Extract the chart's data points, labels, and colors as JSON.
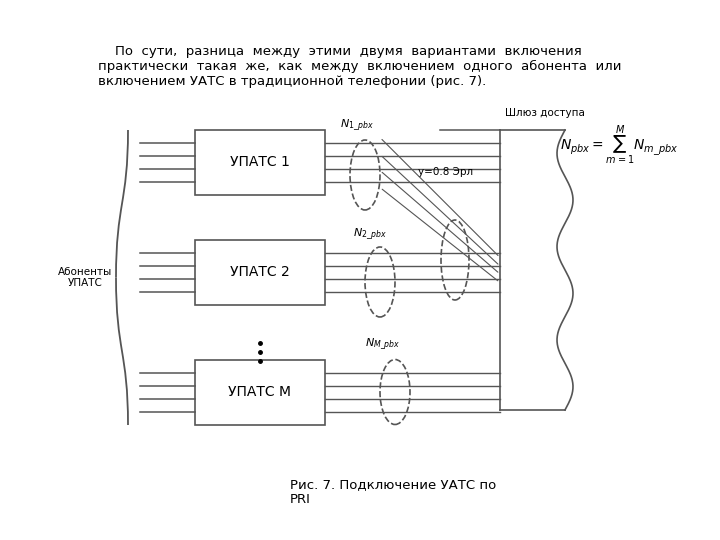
{
  "title_text": "По  сути,  разница  между  этими  двумя  вариантами  включения\nпрактически  такая  же,  как  между  включением  одного  абонента  или\nвключением УАТС в традиционной телефонии (рис. 7).",
  "caption": "Рис. 7. Подключение УАТС по\nPRI",
  "box1_label": "УПАТС 1",
  "box2_label": "УПАТС 2",
  "box3_label": "УПАТС М",
  "label_abonenty": "Абоненты\nУПАТС",
  "label_shlyuz": "Шлюз доступа",
  "label_y08": "y=0.8 Эрл",
  "label_n1": "N",
  "label_n1_sub": "1_pbx",
  "label_n2": "N",
  "label_n2_sub": "2_pbx",
  "label_nm": "N",
  "label_nm_sub": "M_pbx",
  "formula_N": "N",
  "formula_pbx": "pbx",
  "formula_sum": "= ∑",
  "formula_m1M": "M\nm=1",
  "formula_Nm": "N",
  "formula_mpbx": "m_ pbx",
  "background": "#ffffff",
  "line_color": "#555555",
  "dashed_color": "#555555",
  "text_color": "#000000",
  "box_bg": "#ffffff",
  "box_border": "#555555"
}
